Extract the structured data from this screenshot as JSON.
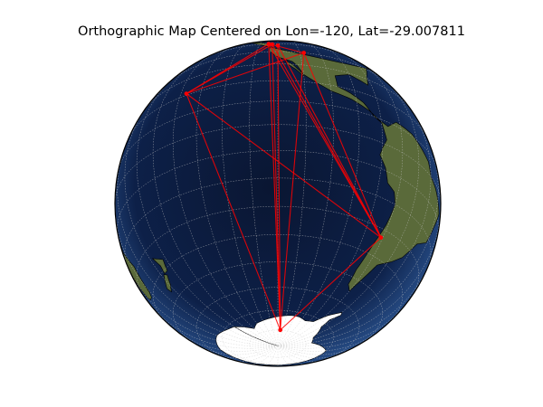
{
  "title": "Orthographic Map Centered on Lon=-120, Lat=-29.007811",
  "map": {
    "projection": "orthographic",
    "center_lon": -120,
    "center_lat": -29.007811,
    "basemap": "satellite imagery (blue ocean)",
    "graticule": {
      "shown": true,
      "style": "dotted",
      "color": "#c8c8c8"
    },
    "colors": {
      "ocean_deep": "#08142e",
      "ocean_shallow": "#2f5b9a",
      "land": "#5a6a3a",
      "antarctica": "#ffffff",
      "route": "#ff0000",
      "outline": "#000000"
    }
  },
  "points": [
    {
      "id": "p1",
      "lon": -125,
      "lat": 50
    },
    {
      "id": "p2",
      "lon": -123,
      "lat": 49
    },
    {
      "id": "p3",
      "lon": -120,
      "lat": 47
    },
    {
      "id": "p4",
      "lon": -108,
      "lat": 40
    },
    {
      "id": "p5",
      "lon": -157,
      "lat": 21
    },
    {
      "id": "p6",
      "lon": -71,
      "lat": -33
    },
    {
      "id": "p7",
      "lon": -115,
      "lat": -80
    }
  ],
  "routes": [
    [
      "p7",
      "p1"
    ],
    [
      "p7",
      "p2"
    ],
    [
      "p7",
      "p3"
    ],
    [
      "p7",
      "p4"
    ],
    [
      "p7",
      "p5"
    ],
    [
      "p7",
      "p6"
    ],
    [
      "p5",
      "p1"
    ],
    [
      "p5",
      "p2"
    ],
    [
      "p5",
      "p4"
    ],
    [
      "p5",
      "p6"
    ],
    [
      "p1",
      "p4"
    ],
    [
      "p2",
      "p6"
    ],
    [
      "p3",
      "p6"
    ],
    [
      "p4",
      "p6"
    ],
    [
      "p1",
      "p6"
    ]
  ]
}
